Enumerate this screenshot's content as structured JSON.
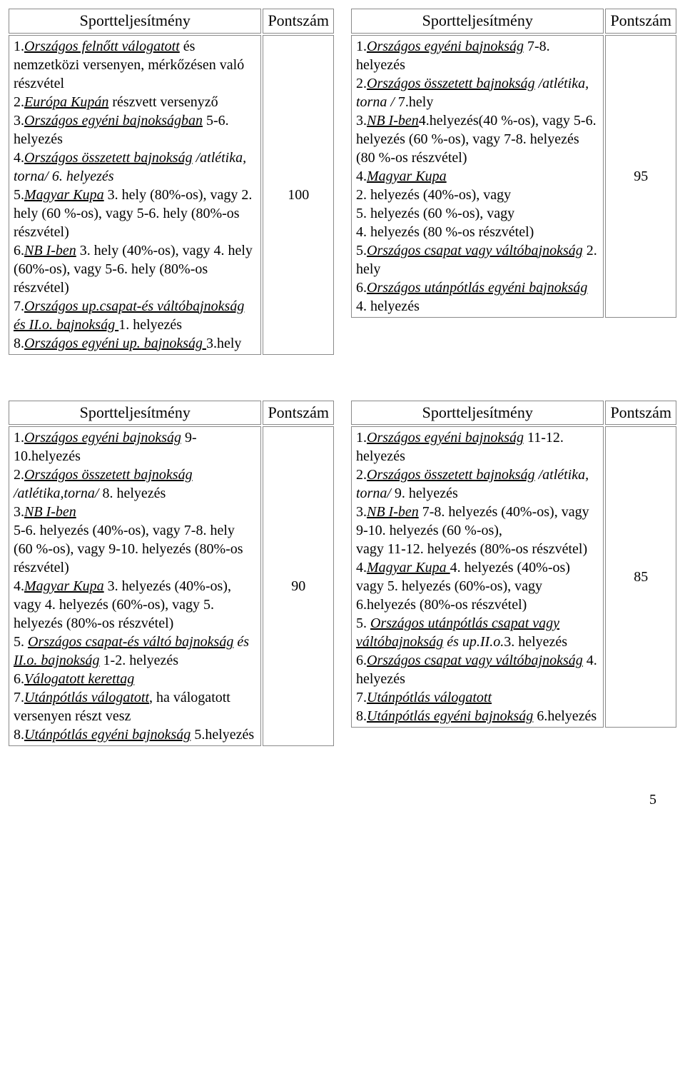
{
  "headers": {
    "perf": "Sportteljesítmény",
    "score": "Pontszám"
  },
  "pageNumber": "5",
  "tables": [
    {
      "score": "100",
      "lines": [
        {
          "parts": [
            {
              "t": "1."
            },
            {
              "t": "Országos felnőtt válogatott",
              "cls": "u i"
            },
            {
              "t": " és nemzetközi versenyen, mérkőzésen való részvétel"
            }
          ]
        },
        {
          "parts": [
            {
              "t": "2."
            },
            {
              "t": "Európa Kupán",
              "cls": "u i"
            },
            {
              "t": " részvett versenyző"
            }
          ]
        },
        {
          "parts": [
            {
              "t": "3."
            },
            {
              "t": "Országos egyéni bajnokságban",
              "cls": "u i"
            },
            {
              "t": " 5-6. helyezés"
            }
          ]
        },
        {
          "parts": [
            {
              "t": "4."
            },
            {
              "t": "Országos összetett bajnokság",
              "cls": "u i"
            },
            {
              "t": " /atlétika, torna/ 6. helyezés",
              "cls": "i"
            }
          ]
        },
        {
          "parts": [
            {
              "t": "5."
            },
            {
              "t": "Magyar Kupa",
              "cls": "u i"
            },
            {
              "t": " 3. hely (80%-os), vagy 2. hely (60 %-os), vagy 5-6. hely (80%-os részvétel)"
            }
          ]
        },
        {
          "parts": [
            {
              "t": "6."
            },
            {
              "t": "NB I-ben",
              "cls": "u i"
            },
            {
              "t": " 3. hely (40%-os), vagy 4. hely (60%-os), vagy 5-6. hely (80%-os részvétel)"
            }
          ]
        },
        {
          "parts": [
            {
              "t": "7."
            },
            {
              "t": "Országos up.csapat-és váltóbajnokság és II.o. bajnokság ",
              "cls": "u i"
            },
            {
              "t": "1. helyezés"
            }
          ]
        },
        {
          "parts": [
            {
              "t": "8."
            },
            {
              "t": "Országos egyéni up. bajnokság ",
              "cls": "u i"
            },
            {
              "t": "3.hely"
            }
          ]
        }
      ]
    },
    {
      "score": "95",
      "lines": [
        {
          "parts": [
            {
              "t": "1."
            },
            {
              "t": "Országos egyéni bajnokság",
              "cls": "u i"
            },
            {
              "t": " 7-8. helyezés"
            }
          ]
        },
        {
          "parts": [
            {
              "t": "2."
            },
            {
              "t": "Országos összetett bajnokság",
              "cls": "u i"
            },
            {
              "t": " /atlétika, torna / ",
              "cls": "i"
            },
            {
              "t": "7.hely"
            }
          ]
        },
        {
          "parts": [
            {
              "t": "3."
            },
            {
              "t": "NB I-ben",
              "cls": "u i"
            },
            {
              "t": "4.helyezés(40 %-os), vagy 5-6. helyezés (60 %-os), vagy 7-8. helyezés (80 %-os részvétel)"
            }
          ]
        },
        {
          "parts": [
            {
              "t": "4."
            },
            {
              "t": "Magyar Kupa",
              "cls": "u i"
            }
          ]
        },
        {
          "parts": [
            {
              "t": "2. helyezés (40%-os), vagy"
            }
          ]
        },
        {
          "parts": [
            {
              "t": " 5. helyezés (60 %-os), vagy"
            }
          ]
        },
        {
          "parts": [
            {
              "t": " 4. helyezés (80 %-os részvétel)"
            }
          ]
        },
        {
          "parts": [
            {
              "t": "5."
            },
            {
              "t": "Országos csapat vagy váltóbajnokság",
              "cls": "u i"
            },
            {
              "t": " 2. hely"
            }
          ]
        },
        {
          "parts": [
            {
              "t": "6."
            },
            {
              "t": "Országos utánpótlás egyéni bajnokság",
              "cls": "u i"
            },
            {
              "t": " 4. helyezés"
            }
          ]
        }
      ]
    },
    {
      "score": "90",
      "lines": [
        {
          "parts": [
            {
              "t": "1."
            },
            {
              "t": "Országos egyéni bajnokság",
              "cls": "u i"
            },
            {
              "t": " 9-10.helyezés"
            }
          ]
        },
        {
          "parts": [
            {
              "t": "2."
            },
            {
              "t": "Országos összetett bajnokság",
              "cls": "u i"
            },
            {
              "t": " /atlétika,torna/",
              "cls": "i"
            },
            {
              "t": " 8. helyezés"
            }
          ]
        },
        {
          "parts": [
            {
              "t": "3."
            },
            {
              "t": "NB I-ben",
              "cls": "u i"
            }
          ]
        },
        {
          "parts": [
            {
              "t": "5-6. helyezés (40%-os), vagy 7-8. hely (60 %-os), vagy 9-10. helyezés (80%-os részvétel)"
            }
          ]
        },
        {
          "parts": [
            {
              "t": "4."
            },
            {
              "t": "Magyar Kupa",
              "cls": "u i"
            },
            {
              "t": " 3. helyezés (40%-os), vagy 4. helyezés (60%-os), vagy 5. helyezés (80%-os részvétel)"
            }
          ]
        },
        {
          "parts": [
            {
              "t": "5. "
            },
            {
              "t": "Országos csapat-és  váltó bajnokság",
              "cls": "u i"
            },
            {
              "t": " és ",
              "cls": "i"
            },
            {
              "t": "II.o. bajnokság",
              "cls": "u i"
            },
            {
              "t": " 1-2. helyezés"
            }
          ]
        },
        {
          "parts": [
            {
              "t": "6."
            },
            {
              "t": "Válogatott kerettag",
              "cls": "u i"
            }
          ]
        },
        {
          "parts": [
            {
              "t": "7."
            },
            {
              "t": "Utánpótlás válogatott",
              "cls": "u i"
            },
            {
              "t": ", ha válogatott versenyen részt vesz"
            }
          ]
        },
        {
          "parts": [
            {
              "t": "8."
            },
            {
              "t": "Utánpótlás egyéni bajnokság",
              "cls": "u i"
            },
            {
              "t": " 5.helyezés"
            }
          ]
        }
      ]
    },
    {
      "score": "85",
      "lines": [
        {
          "parts": [
            {
              "t": "1."
            },
            {
              "t": "Országos egyéni bajnokság",
              "cls": "u i"
            },
            {
              "t": " 11-12. helyezés"
            }
          ]
        },
        {
          "parts": [
            {
              "t": "2."
            },
            {
              "t": "Országos összetett bajnokság",
              "cls": "u i"
            },
            {
              "t": " /atlétika, torna/",
              "cls": "i"
            },
            {
              "t": " 9. helyezés"
            }
          ]
        },
        {
          "parts": [
            {
              "t": "3."
            },
            {
              "t": "NB I-ben",
              "cls": "u i"
            },
            {
              "t": " 7-8. helyezés (40%-os), vagy 9-10. helyezés (60 %-os),"
            }
          ]
        },
        {
          "parts": [
            {
              "t": "vagy 11-12. helyezés (80%-os részvétel)"
            }
          ]
        },
        {
          "parts": [
            {
              "t": "4."
            },
            {
              "t": "Magyar Kupa ",
              "cls": "u i"
            },
            {
              "t": "4. helyezés (40%-os) vagy 5. helyezés (60%-os), vagy 6.helyezés (80%-os részvétel)"
            }
          ]
        },
        {
          "parts": [
            {
              "t": "5. "
            },
            {
              "t": "Országos utánpótlás csapat vagy váltóbajnokság",
              "cls": "u i"
            },
            {
              "t": " és up.II.o.",
              "cls": "i"
            },
            {
              "t": "3. helyezés"
            }
          ]
        },
        {
          "parts": [
            {
              "t": "6."
            },
            {
              "t": "Országos csapat vagy váltóbajnokság",
              "cls": "u i"
            },
            {
              "t": " 4. helyezés"
            }
          ]
        },
        {
          "parts": [
            {
              "t": "7."
            },
            {
              "t": "Utánpótlás válogatott",
              "cls": "u i"
            }
          ]
        },
        {
          "parts": [
            {
              "t": "8."
            },
            {
              "t": "Utánpótlás egyéni bajnokság",
              "cls": "u i"
            },
            {
              "t": " 6.helyezés"
            }
          ]
        }
      ]
    }
  ]
}
